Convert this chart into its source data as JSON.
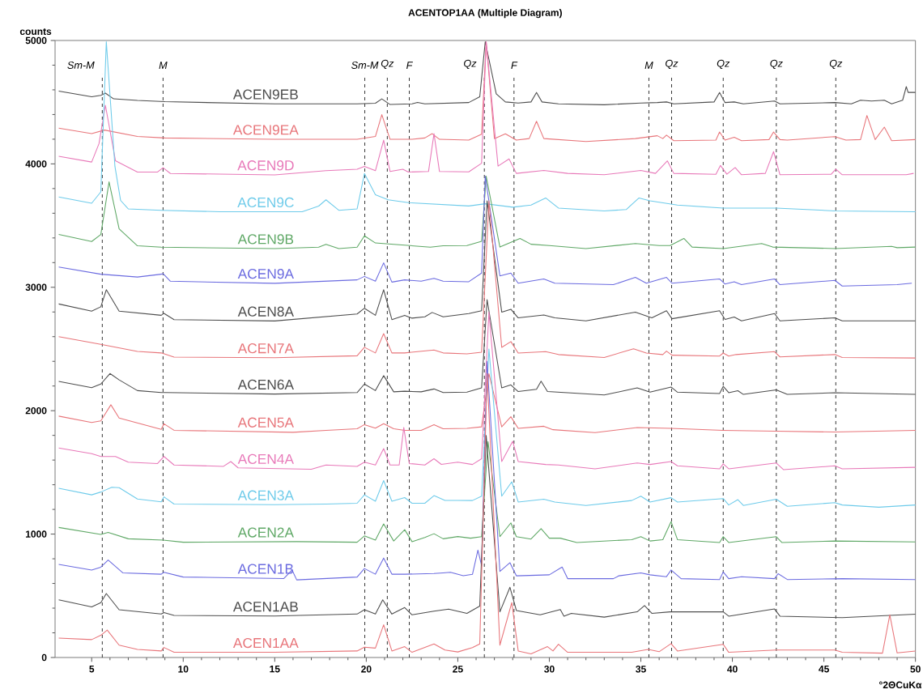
{
  "chart_data": {
    "type": "line",
    "title": "ACENTOP1AA (Multiple Diagram)",
    "xlabel": "°2ΘCuKα",
    "ylabel": "counts",
    "xlim": [
      3,
      50
    ],
    "ylim": [
      0,
      5000
    ],
    "xticks": [
      5,
      10,
      15,
      20,
      25,
      30,
      35,
      40,
      45,
      50
    ],
    "yticks": [
      0,
      1000,
      2000,
      3000,
      4000,
      5000
    ],
    "line_style": "solid",
    "ref_lines": [
      {
        "axis": "x",
        "value": 5.58,
        "label": "Sm-M",
        "color": "#000000",
        "line_style": "dashed"
      },
      {
        "axis": "x",
        "value": 8.9,
        "label": "M",
        "color": "#000000",
        "line_style": "dashed"
      },
      {
        "axis": "x",
        "value": 19.92,
        "label": "Sm-M",
        "color": "#000000",
        "line_style": "dashed"
      },
      {
        "axis": "x",
        "value": 21.15,
        "label": "Qz",
        "color": "#000000",
        "line_style": "dashed"
      },
      {
        "axis": "x",
        "value": 22.35,
        "label": "F",
        "color": "#000000",
        "line_style": "dashed"
      },
      {
        "axis": "x",
        "value": 26.45,
        "label": "Qz",
        "color": "#000000",
        "line_style": "dashed"
      },
      {
        "axis": "x",
        "value": 28.07,
        "label": "F",
        "color": "#000000",
        "line_style": "dashed"
      },
      {
        "axis": "x",
        "value": 35.44,
        "label": "M",
        "color": "#000000",
        "line_style": "dashed"
      },
      {
        "axis": "x",
        "value": 36.68,
        "label": "Qz",
        "color": "#000000",
        "line_style": "dashed"
      },
      {
        "axis": "x",
        "value": 39.5,
        "label": "Qz",
        "color": "#000000",
        "line_style": "dashed"
      },
      {
        "axis": "x",
        "value": 42.4,
        "label": "Qz",
        "color": "#000000",
        "line_style": "dashed"
      },
      {
        "axis": "x",
        "value": 45.65,
        "label": "Qz",
        "color": "#000000",
        "line_style": "dashed"
      }
    ],
    "series": [
      {
        "name": "ACEN9EB",
        "color": "#4d4d4d",
        "x": [
          3.2,
          5.0,
          5.5,
          5.75,
          6.2,
          7.5,
          9.0,
          15,
          19.5,
          20.5,
          20.85,
          21.3,
          22.5,
          22.8,
          23.2,
          25.6,
          26.2,
          26.5,
          27.1,
          27.6,
          28.3,
          29.0,
          29.3,
          29.6,
          30.5,
          33,
          35.0,
          35.9,
          36.4,
          36.8,
          39.0,
          39.3,
          39.6,
          40.1,
          40.6,
          42.3,
          42.6,
          45.6,
          46.5,
          47.0,
          47.6,
          48.3,
          48.7,
          49.3,
          49.5,
          49.6,
          50
        ],
        "values": [
          4590,
          4544,
          4555,
          4573,
          4527,
          4514,
          4504,
          4486,
          4486,
          4491,
          4527,
          4481,
          4486,
          4498,
          4486,
          4497,
          4544,
          4990,
          4568,
          4502,
          4493,
          4502,
          4579,
          4502,
          4486,
          4479,
          4493,
          4497,
          4502,
          4486,
          4502,
          4579,
          4497,
          4502,
          4486,
          4509,
          4486,
          4497,
          4486,
          4516,
          4509,
          4516,
          4486,
          4516,
          4626,
          4579,
          4579
        ]
      },
      {
        "name": "ACEN9EA",
        "color": "#e8757a",
        "x": [
          3.2,
          5.0,
          5.7,
          7.5,
          9.0,
          15,
          19.5,
          20.5,
          20.85,
          21.3,
          22.5,
          23.2,
          23.6,
          24.0,
          25.6,
          26.3,
          26.55,
          27.0,
          27.6,
          28.2,
          28.9,
          29.3,
          29.7,
          32,
          34.7,
          35.9,
          36.2,
          36.4,
          36.8,
          39.1,
          39.3,
          39.6,
          40.1,
          40.5,
          42.0,
          42.25,
          42.6,
          43,
          45.6,
          46.2,
          47.0,
          47.35,
          47.8,
          48.3,
          48.7,
          50
        ],
        "values": [
          4290,
          4245,
          4274,
          4222,
          4210,
          4199,
          4199,
          4222,
          4399,
          4199,
          4199,
          4210,
          4245,
          4199,
          4193,
          4240,
          4990,
          4205,
          4244,
          4193,
          4205,
          4345,
          4205,
          4181,
          4205,
          4228,
          4205,
          4233,
          4188,
          4193,
          4258,
          4193,
          4216,
          4188,
          4197,
          4258,
          4197,
          4193,
          4221,
          4193,
          4197,
          4392,
          4197,
          4298,
          4188,
          4197
        ]
      },
      {
        "name": "ACEN9D",
        "color": "#e879b9",
        "x": [
          3.2,
          5.0,
          5.4,
          5.75,
          6.3,
          7.5,
          8.6,
          8.9,
          9.3,
          15,
          17.8,
          19.5,
          19.9,
          20.5,
          20.95,
          21.3,
          22.0,
          22.3,
          23.4,
          23.7,
          24.0,
          25.6,
          26.3,
          26.55,
          27.2,
          27.8,
          28.2,
          29.7,
          31.0,
          33,
          35.0,
          35.8,
          36.45,
          36.8,
          39.1,
          39.35,
          39.7,
          40.15,
          40.5,
          41.8,
          42.25,
          42.6,
          45.4,
          45.65,
          46.0,
          49.5,
          49.9
        ],
        "values": [
          4061,
          4015,
          4164,
          4475,
          4026,
          3934,
          3934,
          3969,
          3922,
          3911,
          3945,
          3957,
          3980,
          3945,
          4192,
          3938,
          3957,
          3934,
          3938,
          4245,
          3938,
          3935,
          4005,
          4990,
          3982,
          4040,
          3923,
          3947,
          3923,
          3912,
          3947,
          3923,
          4024,
          3923,
          3916,
          3987,
          3916,
          3970,
          3912,
          3923,
          4099,
          3912,
          3916,
          3958,
          3912,
          3912,
          3923
        ]
      },
      {
        "name": "ACEN9C",
        "color": "#6ecbea",
        "x": [
          3.2,
          5.0,
          5.5,
          5.8,
          6.27,
          6.58,
          7.0,
          8.8,
          12,
          16.5,
          17.4,
          17.8,
          18.5,
          19.5,
          19.9,
          20.5,
          21.2,
          22.3,
          25.6,
          26.5,
          28.0,
          29.0,
          29.8,
          30.5,
          33,
          34.2,
          34.9,
          35.5,
          37,
          39.5,
          42.4,
          45.6,
          50
        ],
        "values": [
          3732,
          3681,
          3773,
          4990,
          3980,
          3704,
          3635,
          3624,
          3612,
          3612,
          3658,
          3709,
          3624,
          3635,
          3922,
          3750,
          3709,
          3686,
          3659,
          3677,
          3649,
          3666,
          3724,
          3642,
          3619,
          3630,
          3724,
          3701,
          3666,
          3642,
          3642,
          3619,
          3612
        ]
      },
      {
        "name": "ACEN9B",
        "color": "#5fa866",
        "x": [
          3.2,
          5.0,
          5.5,
          5.95,
          6.5,
          7.5,
          8.8,
          15,
          17.4,
          17.8,
          18.5,
          19.5,
          19.9,
          20.5,
          21.5,
          23.5,
          24.2,
          25.5,
          26.3,
          26.55,
          27.3,
          28.4,
          29,
          30,
          32,
          34.7,
          36.0,
          36.6,
          37.35,
          37.8,
          39.5,
          41.6,
          42.2,
          45.6,
          48.7,
          49,
          50
        ],
        "values": [
          3428,
          3371,
          3428,
          3854,
          3474,
          3336,
          3325,
          3313,
          3325,
          3348,
          3313,
          3325,
          3417,
          3359,
          3348,
          3325,
          3336,
          3338,
          3373,
          3900,
          3326,
          3396,
          3349,
          3338,
          3314,
          3354,
          3338,
          3338,
          3396,
          3326,
          3314,
          3354,
          3326,
          3314,
          3331,
          3321,
          3326
        ]
      },
      {
        "name": "ACEN9A",
        "color": "#6b6be0",
        "x": [
          3.2,
          5.5,
          7.5,
          8.8,
          8.9,
          9.3,
          15,
          19.5,
          19.9,
          20.5,
          20.95,
          21.4,
          22.1,
          23.0,
          23.7,
          24.2,
          25.6,
          26.3,
          26.5,
          27.3,
          27.9,
          28.3,
          29.7,
          30.3,
          33.5,
          34.7,
          35.3,
          36.4,
          36.7,
          39.3,
          39.6,
          40.1,
          40.5,
          42.3,
          42.6,
          45.6,
          46.0,
          49,
          49.8
        ],
        "values": [
          3164,
          3106,
          3083,
          3106,
          3111,
          3049,
          3032,
          3060,
          3088,
          3049,
          3198,
          3042,
          3060,
          3049,
          3072,
          3049,
          3045,
          3115,
          3900,
          3092,
          3115,
          3033,
          3068,
          3033,
          3021,
          3080,
          3033,
          3080,
          3033,
          3068,
          3026,
          3045,
          3021,
          3068,
          3021,
          3056,
          3010,
          3021,
          3033
        ]
      },
      {
        "name": "ACEN8A",
        "color": "#4d4d4d",
        "x": [
          3.2,
          5.0,
          5.5,
          5.8,
          6.5,
          8.8,
          8.95,
          9.5,
          15,
          19.5,
          19.9,
          20.5,
          20.95,
          21.4,
          22.1,
          22.5,
          23.2,
          23.6,
          24.2,
          25.6,
          26.3,
          26.6,
          27.4,
          27.9,
          28.3,
          29.7,
          30.3,
          32,
          34.7,
          35.6,
          36.4,
          36.7,
          39.3,
          39.6,
          40.1,
          40.5,
          42.3,
          42.6,
          45.6,
          46,
          50
        ],
        "values": [
          2865,
          2807,
          2842,
          2980,
          2807,
          2773,
          2789,
          2738,
          2727,
          2784,
          2830,
          2773,
          2980,
          2738,
          2773,
          2750,
          2761,
          2796,
          2761,
          2787,
          2810,
          3700,
          2799,
          2822,
          2752,
          2775,
          2752,
          2728,
          2799,
          2752,
          2810,
          2745,
          2810,
          2740,
          2759,
          2728,
          2787,
          2728,
          2752,
          2728,
          2728
        ]
      },
      {
        "name": "ACEN7A",
        "color": "#e8757a",
        "x": [
          3.2,
          5.5,
          7.5,
          8.8,
          9.5,
          15,
          19.5,
          19.9,
          20.5,
          20.95,
          21.4,
          22.1,
          23.7,
          24.2,
          25.5,
          26.3,
          26.7,
          27.4,
          27.9,
          28.3,
          29.8,
          30.5,
          33,
          34.6,
          35.3,
          36.2,
          36.4,
          36.7,
          39.3,
          39.5,
          39.8,
          40.2,
          42.3,
          42.6,
          45.6,
          46,
          50
        ],
        "values": [
          2600,
          2537,
          2480,
          2468,
          2434,
          2429,
          2445,
          2514,
          2468,
          2625,
          2468,
          2468,
          2492,
          2468,
          2460,
          2474,
          3700,
          2513,
          2560,
          2467,
          2478,
          2455,
          2431,
          2502,
          2467,
          2455,
          2483,
          2450,
          2443,
          2467,
          2443,
          2455,
          2478,
          2436,
          2455,
          2431,
          2427
        ]
      },
      {
        "name": "ACEN6A",
        "color": "#4d4d4d",
        "x": [
          3.2,
          5.0,
          5.5,
          6.0,
          6.5,
          7.5,
          8.8,
          9.0,
          15,
          19.5,
          19.9,
          20.5,
          20.95,
          21.5,
          22.1,
          23.0,
          23.7,
          24.2,
          25.5,
          26.3,
          26.6,
          27.4,
          27.9,
          28.3,
          29.3,
          29.55,
          29.9,
          31,
          33,
          34.8,
          35.5,
          36.65,
          37.0,
          39.3,
          39.5,
          39.8,
          40.3,
          40.6,
          42.4,
          43,
          45.6,
          50
        ],
        "values": [
          2238,
          2186,
          2216,
          2301,
          2250,
          2163,
          2147,
          2147,
          2135,
          2147,
          2216,
          2163,
          2284,
          2153,
          2158,
          2153,
          2176,
          2147,
          2150,
          2185,
          2900,
          2185,
          2209,
          2155,
          2174,
          2239,
          2155,
          2145,
          2127,
          2185,
          2150,
          2192,
          2150,
          2139,
          2197,
          2146,
          2162,
          2132,
          2169,
          2132,
          2146,
          2132
        ]
      },
      {
        "name": "ACEN5A",
        "color": "#e8757a",
        "x": [
          3.2,
          5.0,
          5.5,
          6.05,
          6.5,
          8.8,
          8.95,
          9.5,
          16,
          17.8,
          19.5,
          19.9,
          20.5,
          20.95,
          21.5,
          22.1,
          23.0,
          23.7,
          24.2,
          25.5,
          26.3,
          26.7,
          27.4,
          27.9,
          28.3,
          29.7,
          30.2,
          32.5,
          34.8,
          36.65,
          39.5,
          42.4,
          45.6,
          50
        ],
        "values": [
          1956,
          1905,
          1917,
          2048,
          1940,
          1848,
          1894,
          1841,
          1825,
          1841,
          1854,
          1887,
          1859,
          1894,
          1854,
          1841,
          1841,
          1887,
          1854,
          1857,
          1869,
          2300,
          1869,
          1951,
          1857,
          1874,
          1846,
          1822,
          1864,
          1857,
          1841,
          1834,
          1827,
          1841
        ]
      },
      {
        "name": "ACEN4A",
        "color": "#e879b9",
        "x": [
          3.2,
          5.0,
          5.5,
          6.3,
          7.0,
          8.6,
          8.95,
          9.5,
          12.2,
          12.6,
          13.0,
          17.0,
          17.8,
          19.5,
          19.9,
          20.5,
          20.95,
          21.3,
          21.8,
          22.05,
          22.35,
          23.2,
          23.7,
          24.1,
          25,
          25.8,
          26.3,
          26.7,
          27.4,
          28.0,
          28.3,
          29.8,
          30.5,
          32.5,
          34.8,
          35.5,
          36.65,
          37.0,
          39.3,
          39.5,
          39.8,
          42.4,
          42.8,
          45.6,
          46,
          50
        ],
        "values": [
          1698,
          1652,
          1629,
          1629,
          1583,
          1572,
          1629,
          1560,
          1549,
          1588,
          1537,
          1526,
          1560,
          1549,
          1583,
          1560,
          1693,
          1560,
          1560,
          1864,
          1572,
          1560,
          1611,
          1565,
          1583,
          1564,
          1611,
          2800,
          1588,
          1752,
          1588,
          1564,
          1560,
          1529,
          1576,
          1564,
          1588,
          1553,
          1529,
          1569,
          1529,
          1576,
          1522,
          1553,
          1529,
          1541
        ]
      },
      {
        "name": "ACEN3A",
        "color": "#6ecbea",
        "x": [
          3.2,
          5.0,
          5.5,
          6.1,
          6.5,
          7.5,
          8.8,
          8.95,
          9.5,
          15,
          17.8,
          19.5,
          19.9,
          20.5,
          20.95,
          21.4,
          22.1,
          22.5,
          23.2,
          23.7,
          24.3,
          25.0,
          25.8,
          26.3,
          26.7,
          27.4,
          27.95,
          28.3,
          29.7,
          30.3,
          32,
          34.5,
          35.0,
          35.5,
          36.65,
          37,
          39.5,
          39.8,
          40.3,
          40.6,
          42.4,
          43,
          45.6,
          46,
          48,
          50
        ],
        "values": [
          1371,
          1318,
          1341,
          1380,
          1376,
          1284,
          1261,
          1302,
          1243,
          1238,
          1243,
          1250,
          1318,
          1266,
          1434,
          1266,
          1296,
          1250,
          1250,
          1312,
          1273,
          1273,
          1272,
          1307,
          2500,
          1307,
          1424,
          1260,
          1283,
          1260,
          1232,
          1272,
          1307,
          1260,
          1295,
          1260,
          1288,
          1236,
          1279,
          1232,
          1283,
          1225,
          1255,
          1236,
          1218,
          1236
        ]
      },
      {
        "name": "ACEN2A",
        "color": "#5fa866",
        "x": [
          3.2,
          5.5,
          5.9,
          7,
          8.9,
          10,
          16.2,
          19.5,
          19.9,
          20.5,
          20.95,
          21.5,
          22.1,
          22.5,
          23.2,
          23.7,
          24.2,
          25,
          25.7,
          26.3,
          26.65,
          27.3,
          27.9,
          28.2,
          29.0,
          29.55,
          30.0,
          30.6,
          31.5,
          34.5,
          35.0,
          35.5,
          36.2,
          36.65,
          37.0,
          39.3,
          39.5,
          39.8,
          42.4,
          42.7,
          45.6,
          50
        ],
        "values": [
          1054,
          997,
          1013,
          962,
          951,
          934,
          939,
          934,
          985,
          951,
          1082,
          944,
          1036,
          939,
          973,
          1003,
          962,
          980,
          967,
          979,
          1750,
          979,
          1091,
          979,
          960,
          1044,
          967,
          967,
          932,
          955,
          979,
          944,
          955,
          1101,
          955,
          932,
          979,
          932,
          979,
          932,
          944,
          937
        ]
      },
      {
        "name": "ACEN1B",
        "color": "#6b6be0",
        "x": [
          3.2,
          5.0,
          5.5,
          5.9,
          6.7,
          8.8,
          8.95,
          10,
          15.5,
          15.95,
          16.2,
          19.5,
          19.9,
          20.5,
          20.95,
          21.4,
          22.1,
          23.7,
          24.2,
          24.6,
          25.3,
          25.8,
          26.1,
          26.3,
          26.6,
          27.3,
          27.85,
          28.2,
          30.0,
          30.7,
          31.0,
          33.5,
          33.8,
          35.0,
          35.5,
          36.4,
          36.65,
          37.2,
          39.3,
          39.5,
          39.8,
          40.5,
          42.3,
          42.5,
          43,
          46,
          50
        ],
        "values": [
          755,
          709,
          732,
          790,
          686,
          675,
          691,
          652,
          640,
          709,
          629,
          652,
          721,
          675,
          806,
          675,
          675,
          681,
          686,
          691,
          663,
          674,
          870,
          745,
          2400,
          698,
          768,
          662,
          670,
          733,
          639,
          639,
          662,
          686,
          670,
          655,
          709,
          639,
          632,
          693,
          639,
          655,
          639,
          679,
          632,
          639,
          632
        ]
      },
      {
        "name": "ACEN1AB",
        "color": "#4d4d4d",
        "x": [
          3.2,
          5.0,
          5.5,
          5.8,
          6.5,
          8.8,
          8.95,
          9.5,
          15,
          19.5,
          19.9,
          20.5,
          20.9,
          21.4,
          22.1,
          22.5,
          23.7,
          24.5,
          25.5,
          26.2,
          26.55,
          27.3,
          27.85,
          28.2,
          29.5,
          30.6,
          30.8,
          31.2,
          33,
          34.8,
          35.2,
          35.6,
          36.6,
          39.5,
          39.8,
          42.3,
          42.6,
          46,
          50
        ],
        "values": [
          467,
          410,
          445,
          518,
          387,
          352,
          364,
          341,
          336,
          352,
          387,
          352,
          467,
          352,
          405,
          346,
          375,
          392,
          358,
          416,
          1800,
          370,
          569,
          381,
          346,
          388,
          335,
          358,
          327,
          370,
          421,
          358,
          370,
          370,
          335,
          393,
          335,
          323,
          351
        ]
      },
      {
        "name": "ACEN1AA",
        "color": "#e8757a",
        "x": [
          3.2,
          5.0,
          5.5,
          5.85,
          6.5,
          7.5,
          8.8,
          8.95,
          9.5,
          15,
          19.5,
          19.9,
          20.5,
          20.95,
          21.4,
          22.1,
          22.5,
          23.7,
          24.3,
          25.0,
          25.8,
          26.2,
          26.6,
          27.3,
          27.95,
          28.3,
          29.0,
          29.9,
          30.2,
          30.5,
          31.0,
          34.5,
          35.4,
          36.0,
          36.65,
          37.0,
          39.5,
          39.8,
          42.4,
          45.6,
          46.0,
          48.2,
          48.6,
          49.0,
          50
        ],
        "values": [
          157,
          145,
          180,
          222,
          100,
          65,
          53,
          81,
          42,
          42,
          53,
          83,
          76,
          265,
          53,
          88,
          42,
          110,
          60,
          45,
          80,
          110,
          2300,
          100,
          445,
          53,
          30,
          88,
          53,
          107,
          42,
          42,
          65,
          47,
          112,
          53,
          107,
          42,
          60,
          60,
          42,
          35,
          346,
          37,
          53
        ]
      }
    ]
  }
}
